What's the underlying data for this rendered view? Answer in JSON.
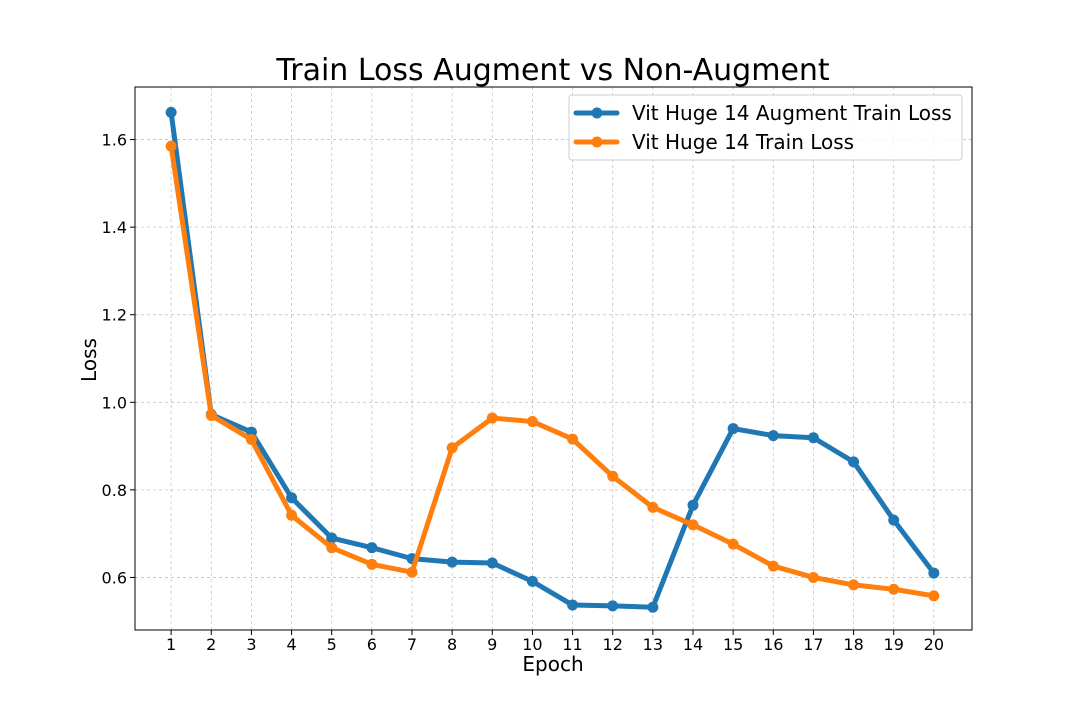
{
  "chart_data": {
    "type": "line",
    "title": "Train Loss Augment vs Non-Augment",
    "xlabel": "Epoch",
    "ylabel": "Loss",
    "x": [
      1,
      2,
      3,
      4,
      5,
      6,
      7,
      8,
      9,
      10,
      11,
      12,
      13,
      14,
      15,
      16,
      17,
      18,
      19,
      20
    ],
    "xticks": [
      "1",
      "2",
      "3",
      "4",
      "5",
      "6",
      "7",
      "8",
      "9",
      "10",
      "11",
      "12",
      "13",
      "14",
      "15",
      "16",
      "17",
      "18",
      "19",
      "20"
    ],
    "yticks": [
      "0.6",
      "0.8",
      "1.0",
      "1.2",
      "1.4",
      "1.6"
    ],
    "ytick_values": [
      0.6,
      0.8,
      1.0,
      1.2,
      1.4,
      1.6
    ],
    "xlim": [
      0.1,
      20.95
    ],
    "ylim": [
      0.48,
      1.72
    ],
    "grid": true,
    "legend_position": "top-right",
    "series": [
      {
        "name": "Vit Huge 14 Augment Train Loss",
        "color": "#1f77b4",
        "values": [
          1.662,
          0.972,
          0.932,
          0.782,
          0.69,
          0.668,
          0.643,
          0.635,
          0.633,
          0.591,
          0.537,
          0.535,
          0.532,
          0.765,
          0.94,
          0.924,
          0.919,
          0.864,
          0.731,
          0.61
        ]
      },
      {
        "name": "Vit Huge 14 Train Loss",
        "color": "#ff7f0e",
        "values": [
          1.585,
          0.97,
          0.915,
          0.742,
          0.668,
          0.63,
          0.612,
          0.896,
          0.964,
          0.956,
          0.916,
          0.831,
          0.76,
          0.72,
          0.676,
          0.626,
          0.6,
          0.583,
          0.573,
          0.558
        ]
      }
    ]
  }
}
